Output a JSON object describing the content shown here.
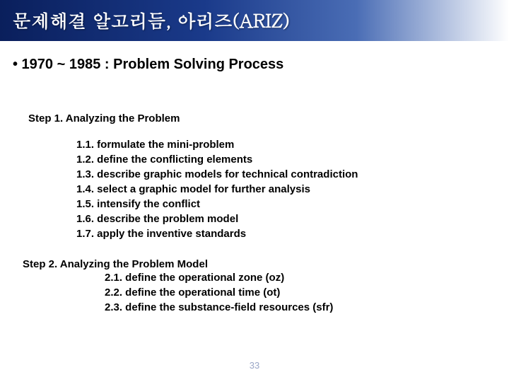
{
  "title": "문제해결 알고리듬, 아리즈(ARIZ)",
  "subtitle": "• 1970 ~ 1985 : Problem Solving Process",
  "step1": {
    "heading": "Step 1. Analyzing the Problem",
    "items": [
      "1.1. formulate the mini-problem",
      "1.2. define the conflicting elements",
      "1.3. describe graphic models for technical contradiction",
      "1.4. select a graphic model for further analysis",
      "1.5. intensify the conflict",
      "1.6. describe the problem model",
      "1.7. apply the inventive standards"
    ]
  },
  "step2": {
    "heading": "Step 2. Analyzing the Problem Model",
    "items": [
      "2.1. define the operational zone (oz)",
      "2.2. define the operational time (ot)",
      "2.3. define the substance-field resources (sfr)"
    ]
  },
  "page_number": "33",
  "colors": {
    "title_gradient_start": "#0a1f5c",
    "title_gradient_mid1": "#1a3a8a",
    "title_gradient_mid2": "#4a6db5",
    "title_gradient_end": "#ffffff",
    "title_text": "#ffffff",
    "body_text": "#000000",
    "page_number": "#9aa7c7",
    "background": "#ffffff"
  },
  "fonts": {
    "title_size": 26,
    "subtitle_size": 20,
    "step_heading_size": 15,
    "item_size": 15,
    "page_number_size": 13
  }
}
